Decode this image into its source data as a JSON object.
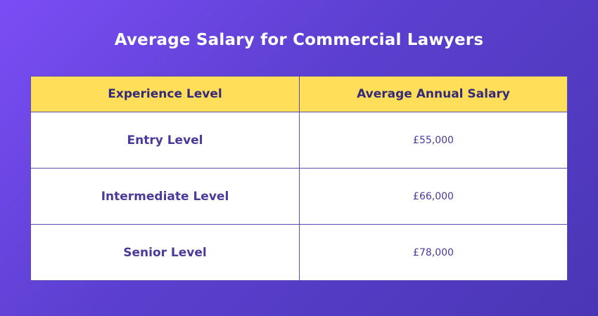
{
  "title": "Average Salary for Commercial Lawyers",
  "table": {
    "headers": [
      "Experience Level",
      "Average Annual Salary"
    ],
    "rows": [
      {
        "level": "Entry Level",
        "salary": "£55,000"
      },
      {
        "level": "Intermediate Level",
        "salary": "£66,000"
      },
      {
        "level": "Senior Level",
        "salary": "£78,000"
      }
    ]
  },
  "colors": {
    "background_start": "#7b4df5",
    "background_end": "#4a36b5",
    "header_fill": "#ffde59",
    "text_primary": "#4b3a9c"
  }
}
